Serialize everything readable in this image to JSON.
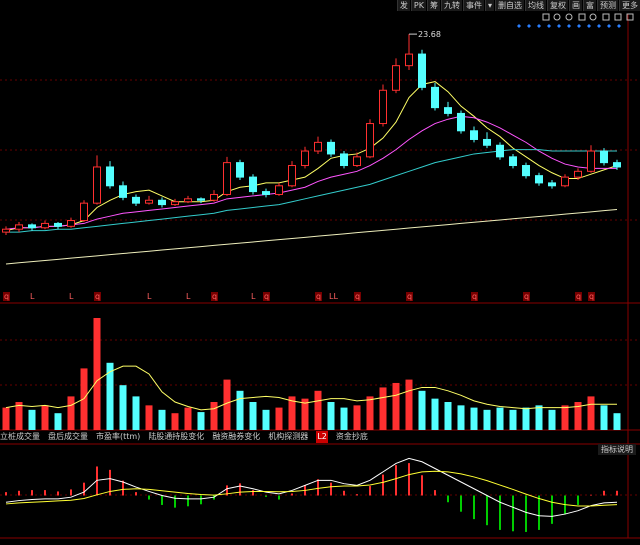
{
  "toolbar": [
    "发",
    "PK",
    "筹",
    "九转",
    "事件",
    "▾",
    "删自选",
    "均线",
    "复权",
    "画",
    "富",
    "预测",
    "更多"
  ],
  "tabs": [
    "立桩成交量",
    "盘后成交量",
    "市盈率(ttm)",
    "陆股通持股变化",
    "融资融券变化",
    "机构探测器",
    "L2",
    "资金抄底"
  ],
  "indicator_help": "指标说明",
  "chart_data": {
    "type": "candlestick",
    "ylim": [
      6,
      25
    ],
    "up_color": "#ff3030",
    "down_color": "#54ffff",
    "high_label": 23.68,
    "ohlc": [
      [
        10.0,
        10.4,
        9.8,
        10.2
      ],
      [
        10.2,
        10.7,
        10.0,
        10.5
      ],
      [
        10.5,
        10.6,
        10.1,
        10.3
      ],
      [
        10.3,
        10.8,
        10.2,
        10.6
      ],
      [
        10.6,
        10.7,
        10.2,
        10.4
      ],
      [
        10.4,
        11.0,
        10.3,
        10.8
      ],
      [
        10.8,
        12.2,
        10.7,
        12.0
      ],
      [
        12.0,
        15.3,
        11.9,
        14.5
      ],
      [
        14.5,
        14.9,
        13.0,
        13.2
      ],
      [
        13.2,
        13.5,
        12.2,
        12.4
      ],
      [
        12.4,
        12.6,
        11.8,
        12.0
      ],
      [
        12.0,
        12.5,
        11.9,
        12.2
      ],
      [
        12.2,
        12.4,
        11.7,
        11.9
      ],
      [
        11.9,
        12.3,
        11.8,
        12.1
      ],
      [
        12.1,
        12.5,
        12.0,
        12.3
      ],
      [
        12.3,
        12.4,
        12.0,
        12.2
      ],
      [
        12.2,
        12.9,
        12.1,
        12.6
      ],
      [
        12.6,
        15.2,
        12.5,
        14.8
      ],
      [
        14.8,
        15.0,
        13.6,
        13.8
      ],
      [
        13.8,
        14.0,
        12.6,
        12.8
      ],
      [
        12.8,
        13.0,
        12.4,
        12.6
      ],
      [
        12.6,
        13.4,
        12.5,
        13.2
      ],
      [
        13.2,
        14.9,
        13.1,
        14.6
      ],
      [
        14.6,
        15.9,
        14.4,
        15.6
      ],
      [
        15.6,
        16.6,
        15.4,
        16.2
      ],
      [
        16.2,
        16.4,
        15.2,
        15.4
      ],
      [
        15.4,
        15.6,
        14.4,
        14.6
      ],
      [
        14.6,
        15.5,
        14.5,
        15.2
      ],
      [
        15.2,
        17.8,
        15.1,
        17.5
      ],
      [
        17.5,
        20.2,
        17.3,
        19.8
      ],
      [
        19.8,
        22.0,
        19.6,
        21.5
      ],
      [
        21.5,
        23.68,
        21.2,
        22.3
      ],
      [
        22.3,
        22.6,
        19.8,
        20.0
      ],
      [
        20.0,
        20.3,
        18.4,
        18.6
      ],
      [
        18.6,
        19.0,
        18.0,
        18.2
      ],
      [
        18.2,
        18.4,
        16.8,
        17.0
      ],
      [
        17.0,
        17.3,
        16.2,
        16.4
      ],
      [
        16.4,
        16.9,
        15.8,
        16.0
      ],
      [
        16.0,
        16.2,
        15.0,
        15.2
      ],
      [
        15.2,
        15.4,
        14.4,
        14.6
      ],
      [
        14.6,
        14.8,
        13.7,
        13.9
      ],
      [
        13.9,
        14.1,
        13.2,
        13.4
      ],
      [
        13.4,
        13.6,
        13.0,
        13.2
      ],
      [
        13.2,
        14.0,
        13.1,
        13.8
      ],
      [
        13.8,
        14.4,
        13.6,
        14.2
      ],
      [
        14.2,
        16.0,
        14.1,
        15.6
      ],
      [
        15.6,
        15.8,
        14.6,
        14.8
      ],
      [
        14.8,
        15.0,
        14.3,
        14.5
      ]
    ],
    "lines": [
      {
        "color": "#ffff66",
        "values": [
          10.1,
          10.3,
          10.3,
          10.4,
          10.4,
          10.5,
          10.8,
          11.7,
          12.2,
          12.6,
          12.8,
          12.9,
          12.5,
          12.1,
          12.1,
          12.1,
          12.2,
          12.8,
          13.1,
          13.2,
          13.4,
          13.4,
          13.6,
          13.8,
          14.4,
          15.1,
          15.3,
          15.4,
          15.8,
          16.5,
          17.6,
          19.3,
          20.2,
          20.4,
          19.7,
          18.7,
          18.0,
          17.2,
          16.6,
          15.8,
          15.2,
          14.6,
          14.1,
          13.7,
          13.7,
          14.0,
          14.3,
          14.6
        ]
      },
      {
        "color": "#ff55ff",
        "values": [
          10.2,
          10.3,
          10.3,
          10.4,
          10.4,
          10.5,
          10.6,
          10.9,
          11.1,
          11.3,
          11.4,
          11.5,
          11.6,
          11.7,
          11.8,
          11.9,
          12.0,
          12.3,
          12.4,
          12.5,
          12.6,
          12.7,
          12.9,
          13.1,
          13.5,
          13.8,
          14.0,
          14.2,
          14.6,
          15.1,
          15.7,
          16.4,
          17.0,
          17.5,
          17.8,
          18.0,
          17.9,
          17.6,
          17.2,
          16.7,
          16.2,
          15.6,
          15.1,
          14.7,
          14.5,
          14.4,
          14.4,
          14.4
        ]
      },
      {
        "color": "#33cccc",
        "values": [
          10.0,
          10.0,
          10.1,
          10.1,
          10.2,
          10.2,
          10.3,
          10.4,
          10.5,
          10.6,
          10.7,
          10.8,
          10.9,
          11.0,
          11.1,
          11.2,
          11.3,
          11.5,
          11.6,
          11.7,
          11.8,
          11.9,
          12.1,
          12.3,
          12.5,
          12.7,
          12.9,
          13.1,
          13.3,
          13.6,
          13.9,
          14.2,
          14.5,
          14.8,
          15.0,
          15.2,
          15.4,
          15.5,
          15.6,
          15.7,
          15.7,
          15.7,
          15.6,
          15.6,
          15.6,
          15.6,
          15.6,
          15.6
        ]
      },
      {
        "color": "#eeeebb",
        "values": [
          7.8,
          7.88,
          7.96,
          8.04,
          8.12,
          8.2,
          8.28,
          8.36,
          8.44,
          8.52,
          8.6,
          8.68,
          8.76,
          8.84,
          8.92,
          9.0,
          9.08,
          9.16,
          9.24,
          9.32,
          9.4,
          9.48,
          9.56,
          9.64,
          9.72,
          9.8,
          9.88,
          9.96,
          10.04,
          10.12,
          10.2,
          10.28,
          10.36,
          10.44,
          10.52,
          10.6,
          10.68,
          10.76,
          10.84,
          10.92,
          11.0,
          11.08,
          11.16,
          11.24,
          11.32,
          11.4,
          11.48,
          11.56
        ]
      }
    ],
    "events": [
      {
        "label": "q",
        "candle": 0
      },
      {
        "label": "L",
        "candle": 2
      },
      {
        "label": "L",
        "candle": 5
      },
      {
        "label": "q",
        "candle": 7
      },
      {
        "label": "L",
        "candle": 11
      },
      {
        "label": "L",
        "candle": 14
      },
      {
        "label": "q",
        "candle": 16
      },
      {
        "label": "L",
        "candle": 19
      },
      {
        "label": "q",
        "candle": 20
      },
      {
        "label": "q",
        "candle": 24
      },
      {
        "label": "LL",
        "candle": 25
      },
      {
        "label": "q",
        "candle": 27
      },
      {
        "label": "q",
        "candle": 31
      },
      {
        "label": "q",
        "candle": 36
      },
      {
        "label": "q",
        "candle": 40
      },
      {
        "label": "q",
        "candle": 44
      },
      {
        "label": "q",
        "candle": 45
      }
    ],
    "volume": {
      "ylim": [
        0,
        100
      ],
      "ma_color": "#ffff66",
      "values": [
        20,
        25,
        18,
        22,
        15,
        30,
        55,
        100,
        60,
        40,
        30,
        22,
        18,
        15,
        20,
        16,
        25,
        45,
        35,
        25,
        18,
        20,
        30,
        28,
        35,
        25,
        20,
        22,
        30,
        38,
        42,
        45,
        35,
        28,
        25,
        22,
        20,
        18,
        20,
        18,
        20,
        22,
        18,
        22,
        25,
        30,
        22,
        15
      ],
      "ma": [
        20,
        22,
        21,
        22,
        20,
        22,
        28,
        44,
        52,
        57,
        57,
        50,
        34,
        25,
        21,
        18,
        19,
        24,
        28,
        29,
        30,
        29,
        26,
        24,
        26,
        28,
        28,
        26,
        27,
        29,
        31,
        35,
        38,
        38,
        35,
        31,
        26,
        23,
        21,
        20,
        19,
        20,
        20,
        20,
        21,
        23,
        23,
        23
      ]
    },
    "macd": {
      "ylim": [
        -1.2,
        1.2
      ],
      "pos_color": "#ff3030",
      "neg_color": "#00cc00",
      "dif_color": "#ffffff",
      "dea_color": "#ffff33",
      "hist": [
        0.1,
        0.14,
        0.16,
        0.16,
        0.12,
        0.18,
        0.38,
        0.86,
        0.76,
        0.44,
        0.1,
        -0.12,
        -0.28,
        -0.36,
        -0.32,
        -0.26,
        -0.12,
        0.3,
        0.36,
        0.16,
        -0.04,
        -0.12,
        0.06,
        0.3,
        0.48,
        0.38,
        0.14,
        0.04,
        0.28,
        0.62,
        0.9,
        0.96,
        0.6,
        0.16,
        -0.2,
        -0.48,
        -0.7,
        -0.88,
        -1.02,
        -1.06,
        -1.08,
        -1.02,
        -0.84,
        -0.56,
        -0.28,
        0.02,
        0.14,
        0.14
      ],
      "dif": [
        -0.2,
        -0.15,
        -0.12,
        -0.1,
        -0.1,
        -0.05,
        0.1,
        0.45,
        0.5,
        0.4,
        0.25,
        0.12,
        0.0,
        -0.08,
        -0.1,
        -0.1,
        -0.05,
        0.2,
        0.28,
        0.2,
        0.1,
        0.05,
        0.15,
        0.3,
        0.45,
        0.45,
        0.35,
        0.3,
        0.45,
        0.7,
        0.95,
        1.1,
        1.0,
        0.8,
        0.6,
        0.4,
        0.2,
        0.0,
        -0.2,
        -0.35,
        -0.5,
        -0.6,
        -0.62,
        -0.55,
        -0.45,
        -0.3,
        -0.22,
        -0.2
      ],
      "dea": [
        -0.25,
        -0.22,
        -0.2,
        -0.18,
        -0.16,
        -0.14,
        -0.09,
        0.02,
        0.12,
        0.18,
        0.2,
        0.18,
        0.14,
        0.1,
        0.06,
        0.03,
        0.01,
        0.05,
        0.1,
        0.12,
        0.12,
        0.11,
        0.12,
        0.15,
        0.21,
        0.26,
        0.28,
        0.28,
        0.31,
        0.39,
        0.5,
        0.62,
        0.7,
        0.72,
        0.7,
        0.64,
        0.55,
        0.44,
        0.31,
        0.18,
        0.04,
        -0.09,
        -0.2,
        -0.27,
        -0.31,
        -0.31,
        -0.29,
        -0.27
      ]
    }
  }
}
